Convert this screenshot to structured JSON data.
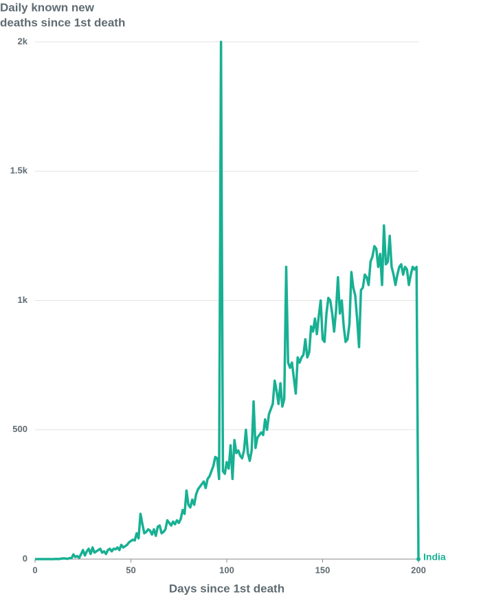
{
  "chart_data": {
    "type": "line",
    "title": [
      "Daily known new",
      "deaths since 1st death"
    ],
    "x_label": "Days since 1st death",
    "x": [
      0,
      1,
      2,
      3,
      4,
      5,
      6,
      7,
      8,
      9,
      10,
      11,
      12,
      13,
      14,
      15,
      16,
      17,
      18,
      19,
      20,
      21,
      22,
      23,
      24,
      25,
      26,
      27,
      28,
      29,
      30,
      31,
      32,
      33,
      34,
      35,
      36,
      37,
      38,
      39,
      40,
      41,
      42,
      43,
      44,
      45,
      46,
      47,
      48,
      49,
      50,
      51,
      52,
      53,
      54,
      55,
      56,
      57,
      58,
      59,
      60,
      61,
      62,
      63,
      64,
      65,
      66,
      67,
      68,
      69,
      70,
      71,
      72,
      73,
      74,
      75,
      76,
      77,
      78,
      79,
      80,
      81,
      82,
      83,
      84,
      85,
      86,
      87,
      88,
      89,
      90,
      91,
      92,
      93,
      94,
      95,
      96,
      97,
      98,
      99,
      100,
      101,
      102,
      103,
      104,
      105,
      106,
      107,
      108,
      109,
      110,
      111,
      112,
      113,
      114,
      115,
      116,
      117,
      118,
      119,
      120,
      121,
      122,
      123,
      124,
      125,
      126,
      127,
      128,
      129,
      130,
      131,
      132,
      133,
      134,
      135,
      136,
      137,
      138,
      139,
      140,
      141,
      142,
      143,
      144,
      145,
      146,
      147,
      148,
      149,
      150,
      151,
      152,
      153,
      154,
      155,
      156,
      157,
      158,
      159,
      160,
      161,
      162,
      163,
      164,
      165,
      166,
      167,
      168,
      169,
      170,
      171,
      172,
      173,
      174,
      175,
      176,
      177,
      178,
      179,
      180,
      181,
      182,
      183,
      184,
      185,
      186,
      187,
      188,
      189,
      190,
      191,
      192,
      193,
      194,
      195,
      196,
      197,
      198,
      199,
      200
    ],
    "series": [
      {
        "name": "India",
        "color": "#18b093",
        "values": [
          0,
          0,
          0,
          0,
          0,
          0,
          0,
          0,
          0,
          0,
          0,
          1,
          0,
          1,
          2,
          3,
          2,
          1,
          4,
          3,
          18,
          8,
          12,
          5,
          19,
          35,
          14,
          30,
          40,
          20,
          45,
          25,
          30,
          35,
          40,
          25,
          30,
          20,
          35,
          40,
          30,
          40,
          38,
          45,
          35,
          55,
          45,
          50,
          55,
          65,
          70,
          75,
          72,
          100,
          80,
          175,
          135,
          100,
          105,
          115,
          110,
          95,
          115,
          90,
          125,
          130,
          100,
          105,
          115,
          150,
          140,
          130,
          145,
          135,
          150,
          140,
          155,
          190,
          175,
          265,
          210,
          200,
          230,
          210,
          250,
          270,
          280,
          290,
          300,
          275,
          310,
          320,
          340,
          360,
          395,
          390,
          310,
          2000,
          340,
          330,
          375,
          350,
          440,
          310,
          460,
          410,
          420,
          400,
          390,
          420,
          500,
          410,
          380,
          420,
          610,
          430,
          470,
          480,
          490,
          480,
          540,
          500,
          560,
          580,
          600,
          690,
          650,
          600,
          680,
          590,
          620,
          1130,
          760,
          740,
          760,
          700,
          640,
          780,
          760,
          780,
          790,
          850,
          780,
          800,
          900,
          880,
          930,
          870,
          940,
          1000,
          850,
          840,
          950,
          1010,
          1000,
          950,
          880,
          960,
          1090,
          950,
          1000,
          900,
          840,
          850,
          910,
          1110,
          1050,
          1020,
          930,
          820,
          1040,
          1050,
          1100,
          1090,
          1060,
          1150,
          1170,
          1210,
          1200,
          1130,
          1180,
          1060,
          1290,
          1140,
          1150,
          1250,
          1130,
          1100,
          1060,
          1100,
          1130,
          1140,
          1100,
          1130,
          1120,
          1060,
          1100,
          1130,
          1120,
          1130,
          0
        ]
      }
    ],
    "xlim": [
      0,
      200
    ],
    "xticks": [
      0,
      50,
      100,
      150,
      200
    ],
    "ylim": [
      0,
      2000
    ],
    "yticks": [
      0,
      500,
      {
        "value": 1000,
        "label": "1k"
      },
      {
        "value": 1500,
        "label": "1.5k"
      },
      {
        "value": 2000,
        "label": "2k"
      }
    ],
    "grid": true
  }
}
